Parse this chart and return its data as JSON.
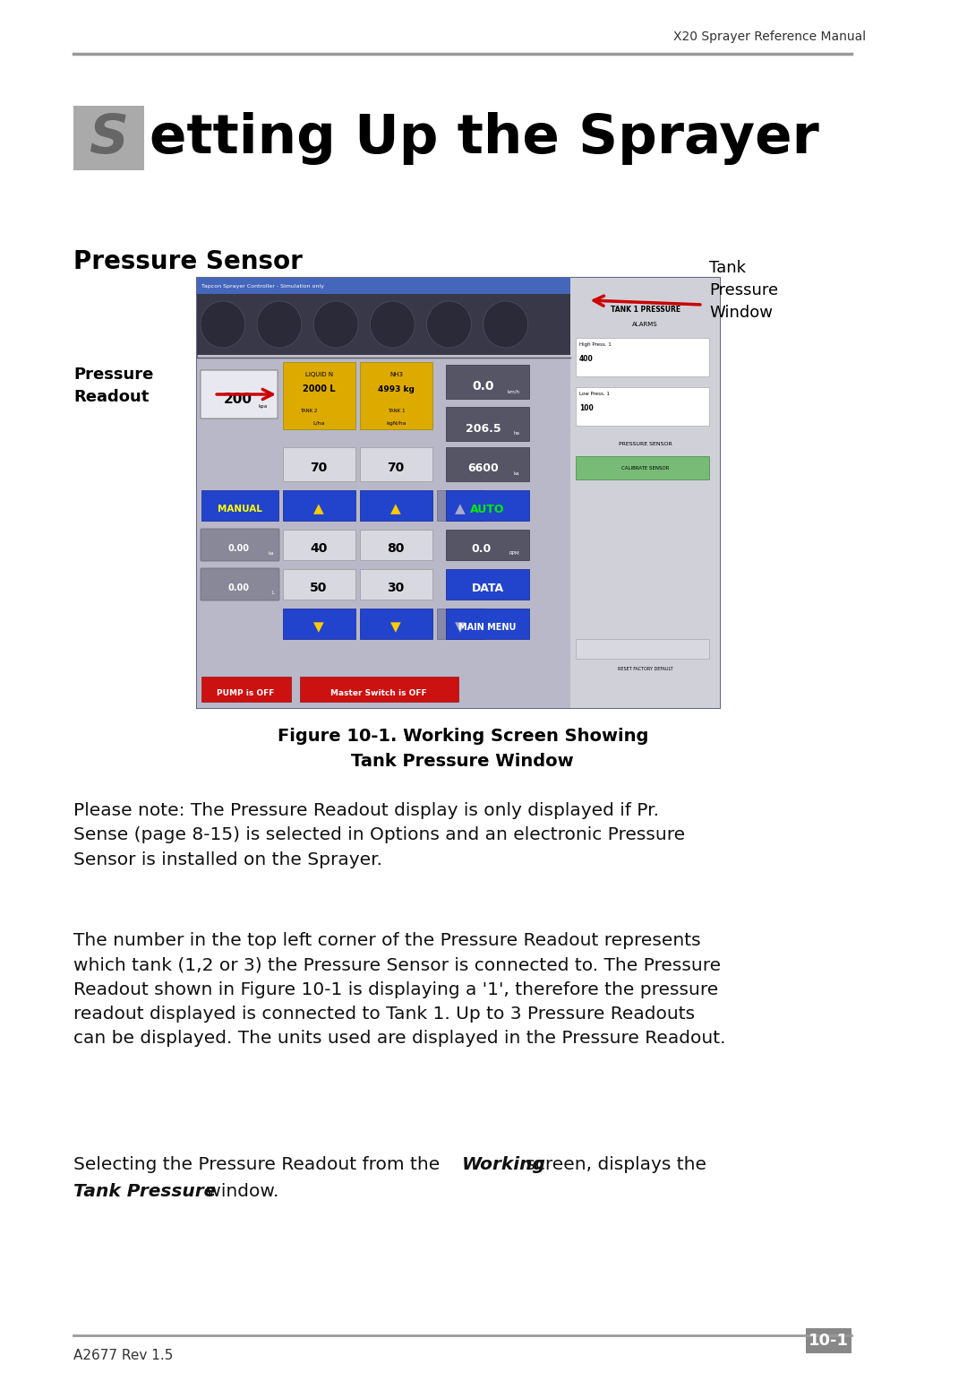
{
  "page_width": 10.8,
  "page_height": 15.32,
  "bg_color": "#ffffff",
  "header_text": "X20 Sprayer Reference Manual",
  "header_color": "#333333",
  "header_line_color": "#888888",
  "footer_left": "A2677 Rev 1.5",
  "footer_right": "10-1",
  "footer_box_color": "#888888",
  "footer_text_color": "#ffffff",
  "annotation_tank": "Tank\nPressure\nWindow",
  "annotation_pr": "Pressure\nReadout",
  "arrow_color": "#cc0000",
  "figure_caption_line1": "Figure 10-1. Working Screen Showing",
  "figure_caption_line2": "Tank Pressure Window",
  "body_text_1": "Please note: The Pressure Readout display is only displayed if Pr.\nSense (page 8-15) is selected in Options and an electronic Pressure\nSensor is installed on the Sprayer.",
  "body_text_2": "The number in the top left corner of the Pressure Readout represents\nwhich tank (1,2 or 3) the Pressure Sensor is connected to. The Pressure\nReadout shown in Figure 10-1 is displaying a '1', therefore the pressure\nreadout displayed is connected to Tank 1. Up to 3 Pressure Readouts\ncan be displayed. The units used are displayed in the Pressure Readout.",
  "section_title": "Pressure Sensor",
  "chapter_s_color": "#aaaaaa"
}
